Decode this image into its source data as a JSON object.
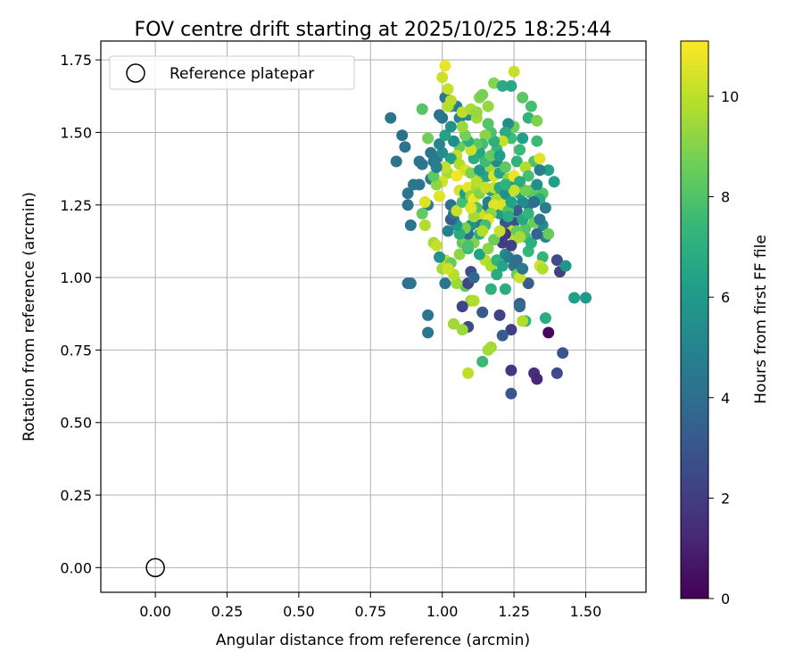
{
  "chart_data": {
    "type": "scatter",
    "title": "FOV centre drift starting at 2025/10/25 18:25:44",
    "xlabel": "Angular distance from reference (arcmin)",
    "ylabel": "Rotation from reference (arcmin)",
    "xlim": [
      -0.19,
      1.71
    ],
    "ylim": [
      -0.085,
      1.815
    ],
    "xticks": [
      0.0,
      0.25,
      0.5,
      0.75,
      1.0,
      1.25,
      1.5
    ],
    "xtick_labels": [
      "0.00",
      "0.25",
      "0.50",
      "0.75",
      "1.00",
      "1.25",
      "1.50"
    ],
    "yticks": [
      0.0,
      0.25,
      0.5,
      0.75,
      1.0,
      1.25,
      1.5,
      1.75
    ],
    "ytick_labels": [
      "0.00",
      "0.25",
      "0.50",
      "0.75",
      "1.00",
      "1.25",
      "1.50",
      "1.75"
    ],
    "grid": true,
    "legend": {
      "position": "top-left",
      "entries": [
        {
          "label": "Reference platepar",
          "marker": "hollow-circle"
        }
      ]
    },
    "reference_point": {
      "x": 0.0,
      "y": 0.0
    },
    "colorbar": {
      "label": "Hours from first FF file",
      "range": [
        0,
        11.1
      ],
      "ticks": [
        0,
        2,
        4,
        6,
        8,
        10
      ],
      "tick_labels": [
        "0",
        "2",
        "4",
        "6",
        "8",
        "10"
      ],
      "colormap": "viridis",
      "colors": [
        "#440154",
        "#482878",
        "#3e4989",
        "#31688e",
        "#26828e",
        "#1f9e89",
        "#35b779",
        "#6ece58",
        "#b5de2b",
        "#fde725"
      ]
    },
    "points": [
      [
        0.82,
        1.55,
        4.3
      ],
      [
        0.86,
        1.49,
        4.1
      ],
      [
        0.84,
        1.4,
        4.2
      ],
      [
        0.87,
        1.45,
        4.2
      ],
      [
        0.88,
        1.29,
        4.3
      ],
      [
        0.88,
        1.25,
        4.2
      ],
      [
        0.89,
        1.18,
        4.2
      ],
      [
        0.9,
        1.32,
        4.4
      ],
      [
        0.92,
        1.4,
        4.5
      ],
      [
        0.88,
        0.98,
        4.1
      ],
      [
        0.89,
        0.98,
        4.2
      ],
      [
        0.95,
        0.87,
        4.3
      ],
      [
        0.95,
        0.81,
        4.3
      ],
      [
        0.92,
        1.32,
        4.3
      ],
      [
        0.93,
        1.39,
        4.3
      ],
      [
        0.96,
        1.43,
        4.4
      ],
      [
        0.97,
        1.4,
        4.5
      ],
      [
        0.95,
        1.25,
        4.6
      ],
      [
        0.96,
        1.34,
        4.6
      ],
      [
        0.98,
        1.41,
        4.5
      ],
      [
        0.99,
        1.56,
        4.2
      ],
      [
        1.0,
        1.55,
        4.3
      ],
      [
        1.01,
        1.62,
        4.3
      ],
      [
        1.03,
        1.59,
        4.5
      ],
      [
        1.05,
        1.59,
        4.8
      ],
      [
        1.06,
        1.55,
        5.0
      ],
      [
        1.09,
        1.56,
        5.3
      ],
      [
        1.02,
        1.59,
        9.8
      ],
      [
        1.0,
        1.69,
        10.3
      ],
      [
        1.01,
        1.73,
        10.8
      ],
      [
        1.02,
        1.65,
        10.1
      ],
      [
        1.03,
        1.61,
        9.9
      ],
      [
        1.07,
        1.57,
        10.0
      ],
      [
        1.1,
        1.58,
        9.7
      ],
      [
        1.12,
        1.55,
        9.5
      ],
      [
        1.12,
        1.57,
        9.3
      ],
      [
        1.13,
        1.62,
        9.0
      ],
      [
        1.14,
        1.63,
        8.8
      ],
      [
        1.16,
        1.59,
        9.3
      ],
      [
        1.18,
        1.67,
        9.0
      ],
      [
        1.21,
        1.66,
        6.8
      ],
      [
        1.24,
        1.66,
        6.6
      ],
      [
        1.25,
        1.71,
        10.2
      ],
      [
        1.28,
        1.62,
        8.2
      ],
      [
        1.31,
        1.59,
        7.8
      ],
      [
        1.3,
        1.55,
        7.2
      ],
      [
        1.33,
        1.54,
        8.9
      ],
      [
        1.33,
        1.47,
        7.5
      ],
      [
        1.32,
        1.4,
        8.0
      ],
      [
        1.34,
        1.41,
        10.6
      ],
      [
        1.35,
        1.29,
        8.1
      ],
      [
        1.34,
        1.27,
        6.9
      ],
      [
        1.37,
        1.37,
        6.4
      ],
      [
        1.39,
        1.33,
        6.2
      ],
      [
        1.36,
        1.24,
        4.8
      ],
      [
        1.35,
        1.18,
        5.5
      ],
      [
        1.36,
        1.14,
        5.2
      ],
      [
        1.37,
        1.15,
        8.5
      ],
      [
        1.35,
        1.07,
        7.3
      ],
      [
        1.34,
        1.04,
        10.4
      ],
      [
        1.35,
        1.03,
        9.8
      ],
      [
        1.4,
        1.06,
        2.5
      ],
      [
        1.41,
        1.02,
        2.2
      ],
      [
        1.43,
        1.04,
        5.8
      ],
      [
        1.46,
        0.93,
        6.2
      ],
      [
        1.5,
        0.93,
        6.0
      ],
      [
        1.36,
        0.86,
        6.8
      ],
      [
        1.37,
        0.81,
        0.3
      ],
      [
        1.42,
        0.74,
        3.0
      ],
      [
        1.4,
        0.67,
        2.5
      ],
      [
        1.32,
        0.67,
        1.6
      ],
      [
        1.33,
        0.65,
        1.2
      ],
      [
        1.27,
        0.91,
        3.3
      ],
      [
        1.27,
        0.9,
        3.9
      ],
      [
        1.3,
        0.98,
        3.3
      ],
      [
        1.29,
        0.85,
        7.0
      ],
      [
        1.28,
        0.85,
        9.8
      ],
      [
        1.24,
        0.82,
        2.1
      ],
      [
        1.24,
        0.68,
        1.8
      ],
      [
        1.24,
        0.6,
        3.0
      ],
      [
        1.21,
        0.8,
        3.3
      ],
      [
        1.2,
        0.87,
        2.2
      ],
      [
        1.22,
        0.96,
        6.8
      ],
      [
        1.17,
        0.96,
        7.0
      ],
      [
        1.14,
        0.88,
        3.2
      ],
      [
        1.14,
        0.71,
        7.5
      ],
      [
        1.17,
        0.76,
        9.5
      ],
      [
        1.16,
        0.75,
        9.6
      ],
      [
        1.09,
        0.67,
        10.0
      ],
      [
        1.1,
        0.92,
        9.3
      ],
      [
        1.11,
        0.92,
        9.8
      ],
      [
        1.09,
        0.83,
        2.5
      ],
      [
        1.07,
        0.82,
        9.4
      ],
      [
        1.07,
        0.9,
        2.3
      ],
      [
        1.04,
        0.84,
        9.5
      ],
      [
        1.08,
        0.97,
        8.3
      ],
      [
        1.09,
        0.98,
        2.3
      ],
      [
        1.1,
        1.02,
        2.6
      ],
      [
        1.11,
        1.0,
        3.7
      ],
      [
        1.05,
        0.98,
        9.4
      ],
      [
        1.01,
        0.98,
        4.3
      ],
      [
        1.0,
        1.03,
        9.5
      ],
      [
        1.01,
        1.06,
        10.0
      ],
      [
        1.03,
        1.05,
        8.5
      ],
      [
        1.04,
        1.01,
        9.9
      ],
      [
        1.06,
        1.08,
        9.2
      ],
      [
        1.07,
        1.12,
        8.3
      ],
      [
        1.09,
        1.1,
        7.5
      ],
      [
        1.08,
        1.13,
        8.8
      ],
      [
        1.11,
        1.12,
        9.0
      ],
      [
        1.13,
        1.15,
        7.0
      ],
      [
        1.15,
        1.06,
        10.0
      ],
      [
        1.17,
        1.04,
        9.7
      ],
      [
        1.19,
        1.01,
        6.8
      ],
      [
        1.19,
        1.06,
        7.2
      ],
      [
        1.21,
        1.04,
        6.5
      ],
      [
        1.22,
        1.08,
        5.4
      ],
      [
        1.23,
        1.07,
        4.8
      ],
      [
        1.25,
        1.04,
        4.2
      ],
      [
        1.26,
        1.01,
        8.5
      ],
      [
        1.26,
        1.06,
        4.0
      ],
      [
        1.27,
        1.0,
        10.3
      ],
      [
        1.28,
        1.03,
        4.5
      ],
      [
        1.3,
        1.09,
        7.4
      ],
      [
        1.29,
        1.14,
        7.8
      ],
      [
        1.31,
        1.12,
        7.0
      ],
      [
        1.29,
        1.17,
        8.1
      ],
      [
        1.32,
        1.19,
        8.6
      ],
      [
        1.33,
        1.15,
        3.6
      ],
      [
        1.34,
        1.2,
        4.4
      ],
      [
        1.3,
        1.25,
        4.5
      ],
      [
        1.31,
        1.29,
        7.4
      ],
      [
        1.28,
        1.26,
        5.3
      ],
      [
        1.27,
        1.29,
        6.1
      ],
      [
        1.26,
        1.23,
        3.3
      ],
      [
        1.25,
        1.19,
        2.7
      ],
      [
        1.24,
        1.16,
        10.2
      ],
      [
        1.25,
        1.13,
        10.0
      ],
      [
        1.24,
        1.11,
        2.2
      ],
      [
        1.22,
        1.15,
        1.8
      ],
      [
        1.21,
        1.12,
        2.0
      ],
      [
        1.22,
        1.19,
        3.0
      ],
      [
        1.2,
        1.22,
        6.0
      ],
      [
        1.21,
        1.26,
        5.0
      ],
      [
        1.19,
        1.29,
        4.2
      ],
      [
        1.17,
        1.3,
        6.5
      ],
      [
        1.16,
        1.26,
        4.8
      ],
      [
        1.15,
        1.23,
        4.4
      ],
      [
        1.14,
        1.2,
        5.3
      ],
      [
        1.12,
        1.19,
        4.7
      ],
      [
        1.1,
        1.18,
        5.6
      ],
      [
        1.09,
        1.15,
        4.0
      ],
      [
        1.08,
        1.17,
        8.8
      ],
      [
        1.06,
        1.15,
        6.9
      ],
      [
        1.05,
        1.18,
        6.0
      ],
      [
        1.04,
        1.2,
        5.2
      ],
      [
        1.02,
        1.16,
        4.9
      ],
      [
        1.03,
        1.2,
        3.3
      ],
      [
        1.04,
        1.22,
        4.3
      ],
      [
        1.03,
        1.25,
        4.1
      ],
      [
        1.05,
        1.23,
        10.2
      ],
      [
        1.07,
        1.26,
        7.8
      ],
      [
        1.06,
        1.3,
        10.4
      ],
      [
        1.08,
        1.29,
        6.2
      ],
      [
        1.09,
        1.31,
        10.7
      ],
      [
        1.1,
        1.28,
        9.3
      ],
      [
        1.11,
        1.27,
        10.9
      ],
      [
        1.12,
        1.31,
        9.6
      ],
      [
        1.13,
        1.29,
        9.0
      ],
      [
        1.14,
        1.34,
        7.0
      ],
      [
        1.15,
        1.31,
        10.2
      ],
      [
        1.16,
        1.35,
        6.5
      ],
      [
        1.17,
        1.38,
        9.5
      ],
      [
        1.18,
        1.35,
        10.5
      ],
      [
        1.19,
        1.4,
        5.3
      ],
      [
        1.2,
        1.36,
        6.5
      ],
      [
        1.22,
        1.38,
        8.3
      ],
      [
        1.23,
        1.34,
        9.2
      ],
      [
        1.24,
        1.31,
        6.0
      ],
      [
        1.25,
        1.35,
        10.8
      ],
      [
        1.26,
        1.4,
        7.2
      ],
      [
        1.27,
        1.44,
        7.5
      ],
      [
        1.28,
        1.48,
        6.3
      ],
      [
        1.29,
        1.38,
        9.8
      ],
      [
        1.3,
        1.35,
        7.8
      ],
      [
        1.31,
        1.3,
        8.3
      ],
      [
        1.25,
        1.52,
        8.6
      ],
      [
        1.24,
        1.48,
        7.6
      ],
      [
        1.23,
        1.53,
        5.4
      ],
      [
        1.22,
        1.5,
        6.8
      ],
      [
        1.21,
        1.47,
        10.1
      ],
      [
        1.19,
        1.44,
        7.4
      ],
      [
        1.18,
        1.47,
        7.0
      ],
      [
        1.17,
        1.5,
        7.9
      ],
      [
        1.16,
        1.53,
        8.1
      ],
      [
        1.15,
        1.49,
        9.1
      ],
      [
        1.14,
        1.46,
        7.8
      ],
      [
        1.13,
        1.43,
        6.5
      ],
      [
        1.12,
        1.46,
        8.2
      ],
      [
        1.11,
        1.41,
        6.9
      ],
      [
        1.1,
        1.44,
        10.3
      ],
      [
        1.09,
        1.47,
        7.0
      ],
      [
        1.08,
        1.49,
        8.7
      ],
      [
        1.07,
        1.52,
        9.4
      ],
      [
        1.06,
        1.45,
        8.5
      ],
      [
        1.05,
        1.42,
        10.1
      ],
      [
        1.04,
        1.47,
        5.5
      ],
      [
        1.03,
        1.41,
        6.2
      ],
      [
        1.02,
        1.36,
        9.7
      ],
      [
        1.01,
        1.38,
        10.1
      ],
      [
        1.0,
        1.33,
        10.4
      ],
      [
        0.99,
        1.28,
        10.6
      ],
      [
        0.98,
        1.32,
        9.2
      ],
      [
        0.97,
        1.35,
        8.3
      ],
      [
        0.98,
        1.38,
        4.7
      ],
      [
        1.0,
        1.43,
        5.4
      ],
      [
        0.99,
        1.46,
        5.1
      ],
      [
        1.01,
        1.49,
        6.4
      ],
      [
        1.03,
        1.52,
        5.7
      ],
      [
        1.05,
        1.35,
        10.9
      ],
      [
        1.06,
        1.39,
        9.8
      ],
      [
        1.08,
        1.37,
        10.4
      ],
      [
        1.1,
        1.36,
        8.9
      ],
      [
        1.12,
        1.33,
        9.9
      ],
      [
        1.13,
        1.37,
        5.9
      ],
      [
        1.15,
        1.4,
        7.6
      ],
      [
        1.17,
        1.42,
        8.4
      ],
      [
        1.18,
        1.31,
        10.1
      ],
      [
        1.19,
        1.27,
        9.6
      ],
      [
        1.2,
        1.31,
        6.7
      ],
      [
        1.21,
        1.25,
        10.5
      ],
      [
        1.22,
        1.29,
        5.5
      ],
      [
        1.23,
        1.23,
        7.9
      ],
      [
        1.24,
        1.26,
        6.4
      ],
      [
        1.18,
        1.25,
        10.6
      ],
      [
        1.17,
        1.22,
        9.1
      ],
      [
        1.16,
        1.2,
        10.7
      ],
      [
        1.15,
        1.18,
        7.7
      ],
      [
        1.14,
        1.16,
        9.8
      ],
      [
        1.13,
        1.22,
        10.3
      ],
      [
        1.12,
        1.24,
        8.0
      ],
      [
        1.11,
        1.21,
        9.5
      ],
      [
        1.1,
        1.24,
        10.6
      ],
      [
        0.95,
        1.48,
        8.7
      ],
      [
        0.93,
        1.58,
        8.1
      ],
      [
        0.93,
        1.22,
        8.4
      ],
      [
        0.94,
        1.18,
        9.8
      ],
      [
        0.94,
        1.26,
        10.5
      ],
      [
        0.97,
        1.12,
        9.6
      ],
      [
        0.98,
        1.11,
        10.1
      ],
      [
        0.99,
        1.07,
        5.6
      ],
      [
        1.02,
        1.03,
        10.3
      ],
      [
        1.09,
        1.11,
        7.9
      ],
      [
        1.13,
        1.08,
        6.4
      ],
      [
        1.16,
        1.1,
        9.1
      ],
      [
        1.18,
        1.13,
        8.6
      ],
      [
        1.2,
        1.16,
        10.1
      ],
      [
        1.23,
        1.21,
        6.9
      ],
      [
        1.26,
        1.16,
        8.4
      ],
      [
        1.27,
        1.14,
        9.6
      ],
      [
        1.28,
        1.2,
        6.6
      ],
      [
        1.3,
        1.22,
        7.3
      ],
      [
        1.29,
        1.3,
        8.7
      ],
      [
        1.32,
        1.26,
        4.1
      ],
      [
        1.33,
        1.32,
        5.6
      ],
      [
        1.34,
        1.37,
        4.6
      ],
      [
        1.27,
        1.33,
        6.8
      ],
      [
        1.25,
        1.3,
        10.2
      ],
      [
        1.22,
        1.32,
        7.1
      ],
      [
        1.2,
        1.42,
        6.2
      ]
    ]
  }
}
